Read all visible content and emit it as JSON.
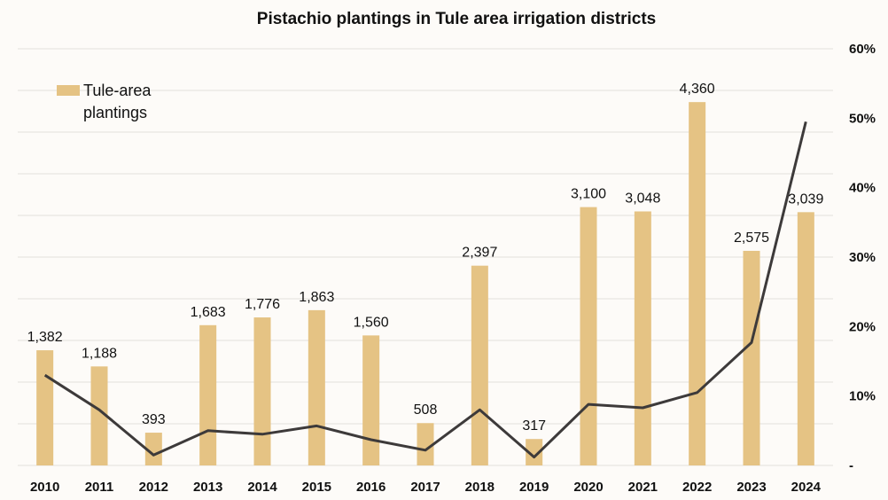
{
  "chart_data": {
    "type": "bar",
    "title": "Pistachio plantings in Tule area irrigation districts",
    "categories": [
      "2010",
      "2011",
      "2012",
      "2013",
      "2014",
      "2015",
      "2016",
      "2017",
      "2018",
      "2019",
      "2020",
      "2021",
      "2022",
      "2023",
      "2024"
    ],
    "series": [
      {
        "name": "Tule-area plantings",
        "type": "bar",
        "axis": "left",
        "color": "#e5c384",
        "values": [
          1382,
          1188,
          393,
          1683,
          1776,
          1863,
          1560,
          508,
          2397,
          317,
          3100,
          3048,
          4360,
          2575,
          3039
        ],
        "labels": [
          "1,382",
          "1,188",
          "393",
          "1,683",
          "1,776",
          "1,863",
          "1,560",
          "508",
          "2,397",
          "317",
          "3,100",
          "3,048",
          "4,360",
          "2,575",
          "3,039"
        ]
      },
      {
        "name": "",
        "type": "line",
        "axis": "right",
        "color": "#3d3a3a",
        "values": [
          13,
          8,
          1.5,
          5,
          4.5,
          5.7,
          3.7,
          2.2,
          8,
          1.2,
          8.8,
          8.3,
          10.5,
          17.7,
          49.5
        ]
      }
    ],
    "legend": {
      "labels": [
        "Tule-area",
        "plantings"
      ],
      "position": "top-left"
    },
    "y_left": {
      "range": [
        0,
        5000
      ],
      "ticks_shown": false
    },
    "y_right": {
      "range": [
        0,
        60
      ],
      "ticks": [
        0,
        10,
        20,
        30,
        40,
        50,
        60
      ],
      "tick_labels": [
        "-",
        "10%",
        "20%",
        "30%",
        "40%",
        "50%",
        "60%"
      ]
    },
    "grid": true
  }
}
